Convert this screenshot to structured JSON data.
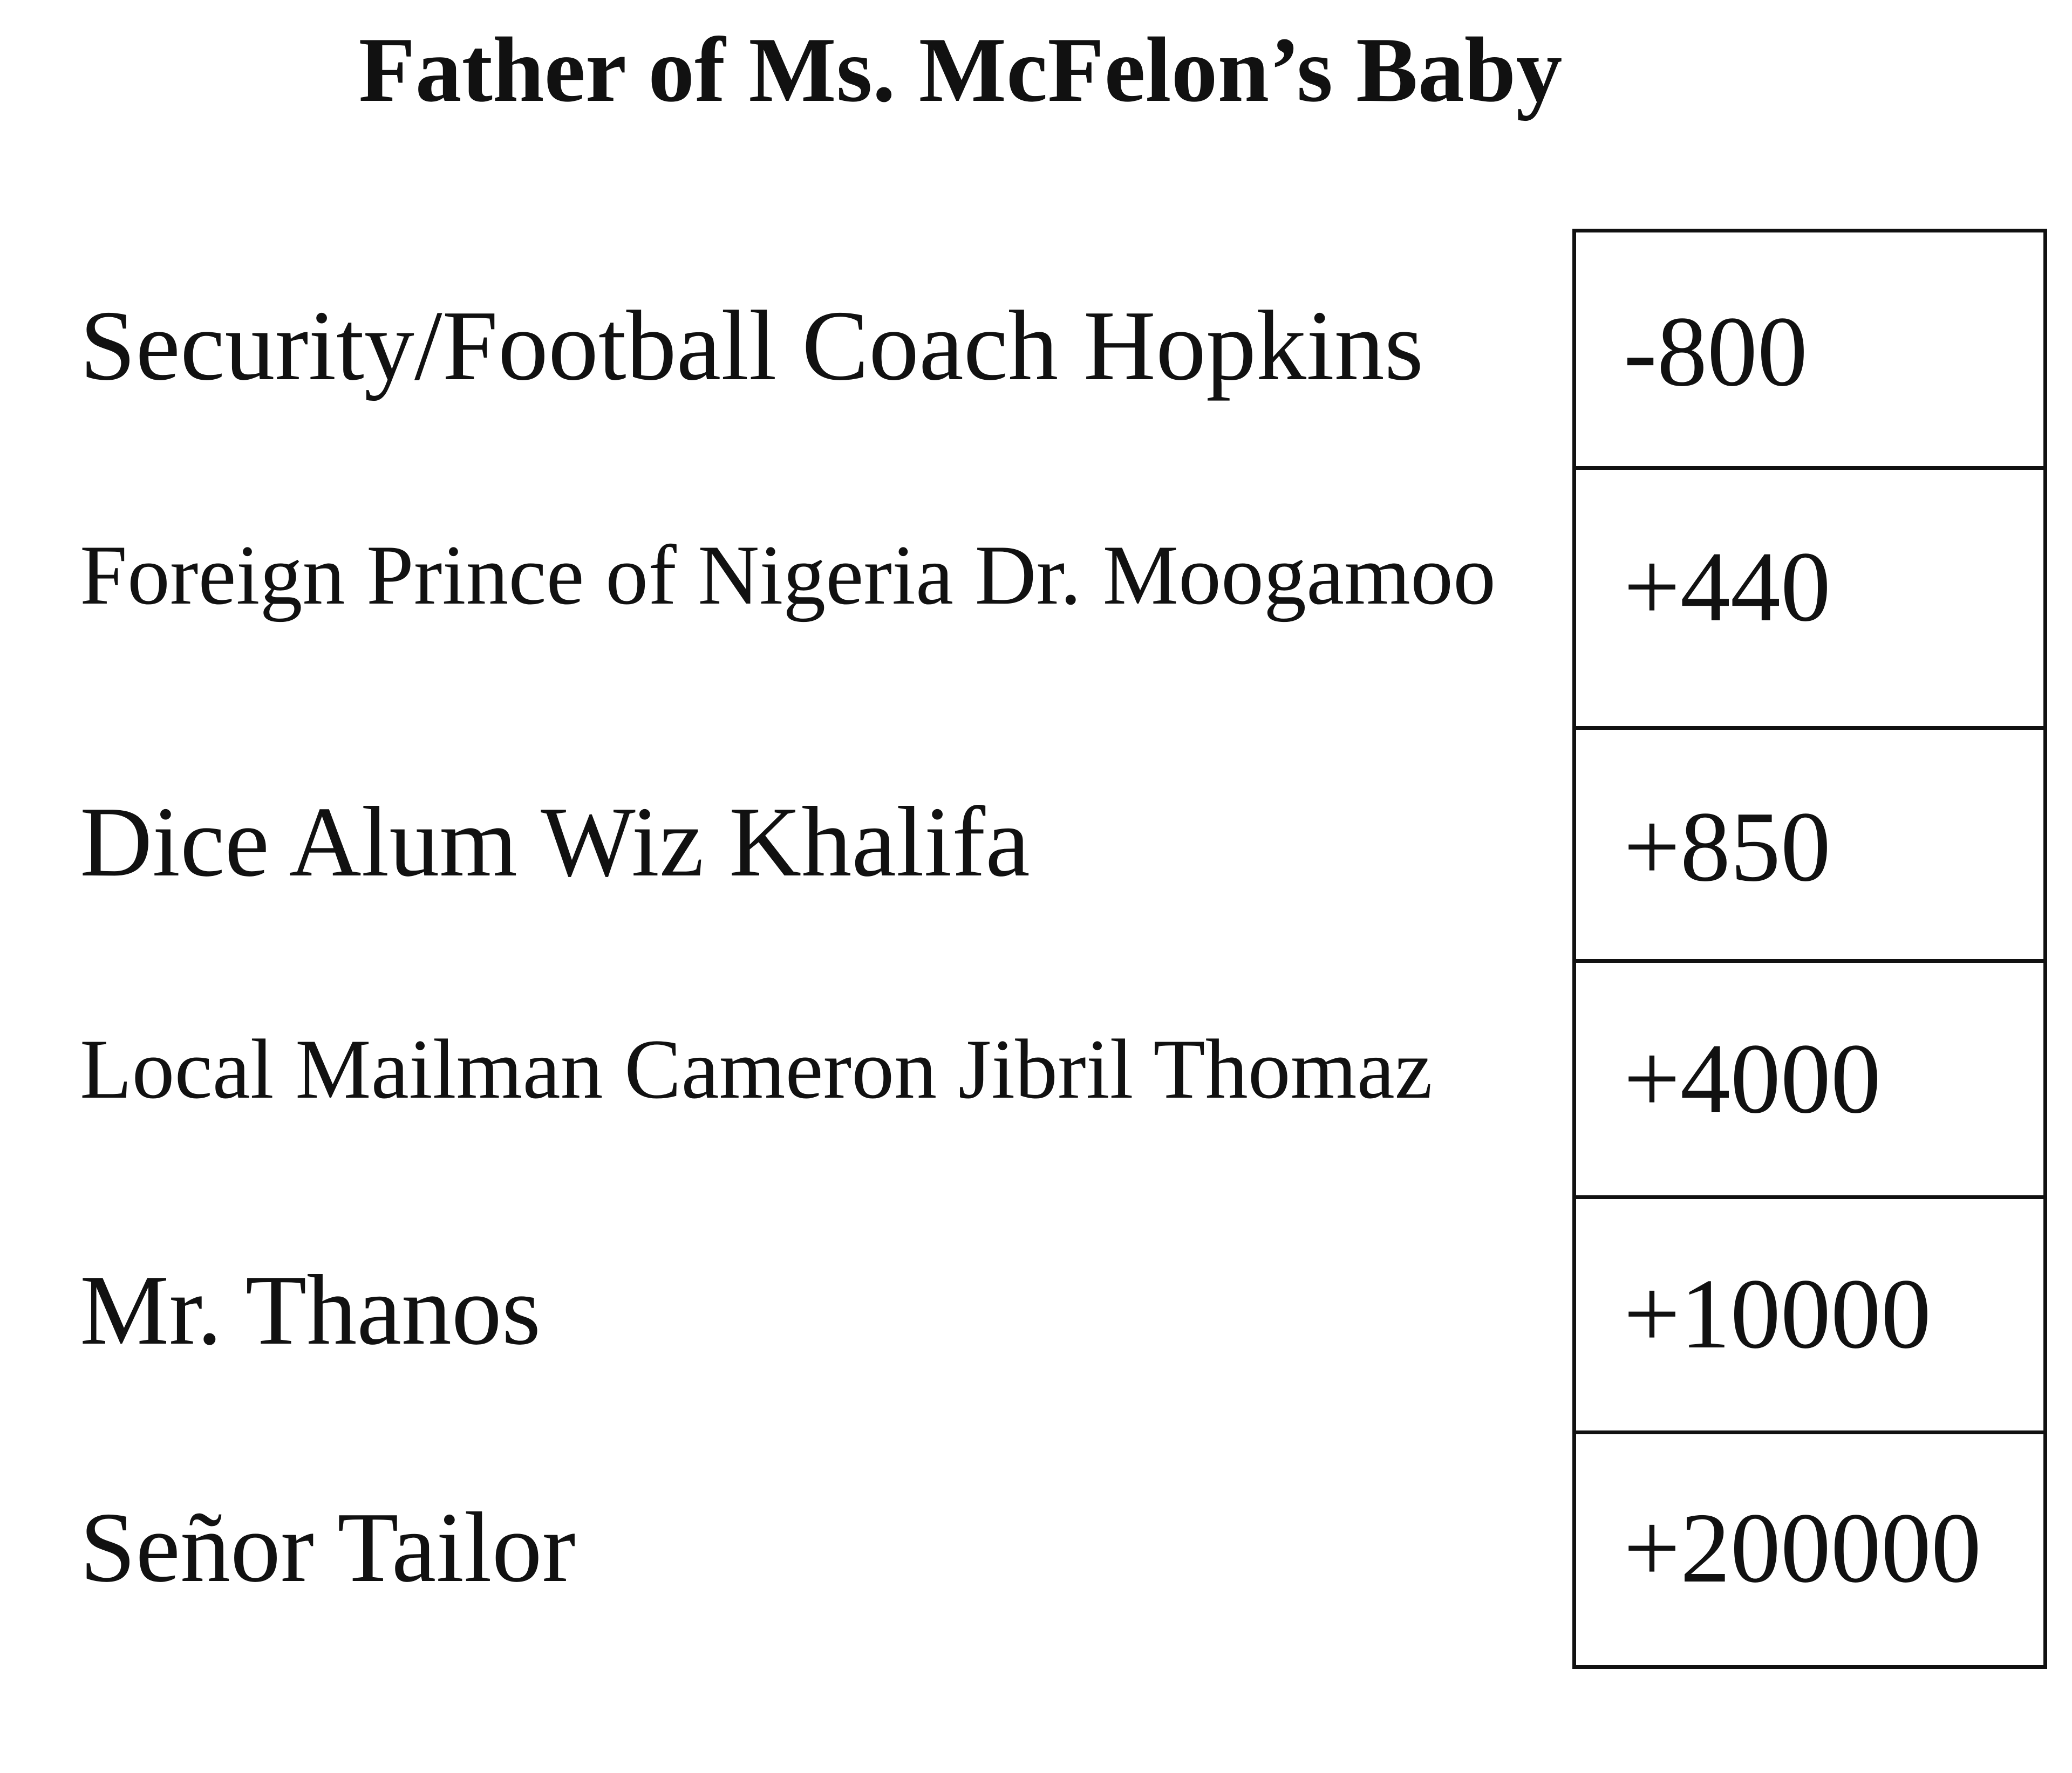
{
  "title": "Father of Ms. McFelon’s Baby",
  "rows": [
    {
      "name": "Security/Football Coach Hopkins",
      "odds": "-800"
    },
    {
      "name": "Foreign Prince of Nigeria Dr. Moogamoo",
      "odds": "+440"
    },
    {
      "name": "Dice Alum Wiz Khalifa",
      "odds": "+850"
    },
    {
      "name": "Local Mailman Cameron Jibril Thomaz",
      "odds": "+4000"
    },
    {
      "name": "Mr. Thanos",
      "odds": "+10000"
    },
    {
      "name": "Señor Tailor",
      "odds": "+200000"
    }
  ]
}
